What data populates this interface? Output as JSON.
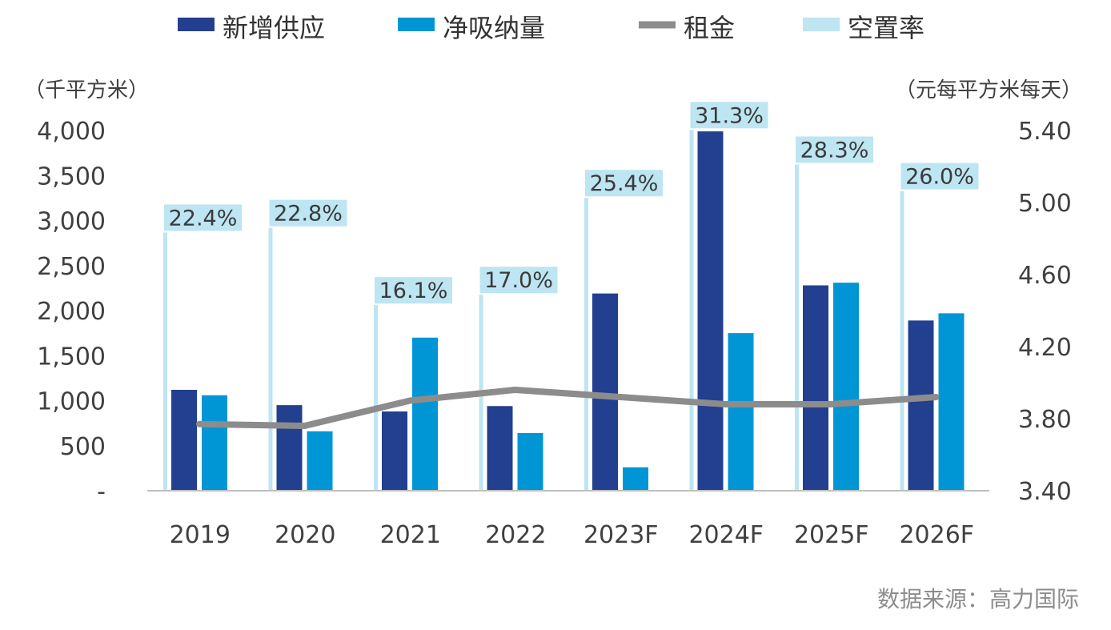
{
  "chart_data": {
    "type": "bar",
    "categories": [
      "2019",
      "2020",
      "2021",
      "2022",
      "2023F",
      "2024F",
      "2025F",
      "2026F"
    ],
    "series": [
      {
        "name": "新增供应",
        "kind": "bar",
        "axis": "left",
        "color": "#233F8F",
        "values": [
          1120,
          950,
          880,
          940,
          2190,
          3990,
          2280,
          1890
        ]
      },
      {
        "name": "净吸纳量",
        "kind": "bar",
        "axis": "left",
        "color": "#0096D6",
        "values": [
          1060,
          660,
          1700,
          640,
          260,
          1750,
          2310,
          1970
        ]
      },
      {
        "name": "租金",
        "kind": "line",
        "axis": "right",
        "color": "#8C8C8C",
        "values": [
          3.77,
          3.76,
          3.9,
          3.96,
          3.92,
          3.88,
          3.88,
          3.92
        ]
      },
      {
        "name": "空置率",
        "kind": "bar",
        "axis": "vacancy",
        "color": "#BDE5F2",
        "values": [
          22.4,
          22.8,
          16.1,
          17.0,
          25.4,
          31.3,
          28.3,
          26.0
        ],
        "labels": [
          "22.4%",
          "22.8%",
          "16.1%",
          "17.0%",
          "25.4%",
          "31.3%",
          "28.3%",
          "26.0%"
        ]
      }
    ],
    "y_left": {
      "unit": "（千平方米）",
      "ylim": [
        0,
        4000
      ],
      "ticks": [
        "-",
        "500",
        "1,000",
        "1,500",
        "2,000",
        "2,500",
        "3,000",
        "3,500",
        "4,000"
      ],
      "tick_values": [
        0,
        500,
        1000,
        1500,
        2000,
        2500,
        3000,
        3500,
        4000
      ]
    },
    "y_right": {
      "unit": "（元每平方米每天）",
      "ylim": [
        3.4,
        5.4
      ],
      "ticks": [
        "3.40",
        "3.80",
        "4.20",
        "4.60",
        "5.00",
        "5.40"
      ],
      "tick_values": [
        3.4,
        3.8,
        4.2,
        4.6,
        5.0,
        5.4
      ]
    },
    "legend": {
      "position": "top"
    },
    "grid": false
  },
  "source": "数据来源：高力国际"
}
